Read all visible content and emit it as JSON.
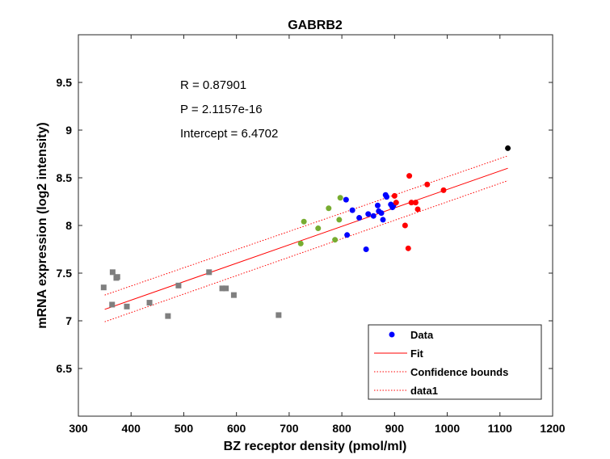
{
  "chart_data": {
    "type": "scatter",
    "title": "GABRB2",
    "xlabel": "BZ receptor density (pmol/ml)",
    "ylabel": "mRNA expression (log2 intensity)",
    "xlim": [
      300,
      1200
    ],
    "ylim": [
      6,
      10
    ],
    "xticks": [
      300,
      400,
      500,
      600,
      700,
      800,
      900,
      1000,
      1100,
      1200
    ],
    "yticks": [
      6.5,
      7,
      7.5,
      8,
      8.5,
      9,
      9.5
    ],
    "ytick_labels": [
      "6.5",
      "7",
      "7.5",
      "8",
      "8.5",
      "9",
      "9.5"
    ],
    "grid": false,
    "annotations": [
      "R = 0.87901",
      "P = 2.1157e-16",
      "Intercept = 6.4702"
    ],
    "legend": {
      "position": "bottom-right",
      "entries": [
        "Data",
        "Fit",
        "Confidence bounds",
        "data1"
      ]
    },
    "fit": {
      "x": [
        350,
        1115
      ],
      "y": [
        7.12,
        8.6
      ],
      "color": "#ff0000"
    },
    "confidence_upper": {
      "x": [
        350,
        1115
      ],
      "y": [
        7.27,
        8.73
      ],
      "color": "#ff0000"
    },
    "confidence_lower": {
      "x": [
        350,
        1115
      ],
      "y": [
        6.99,
        8.47
      ],
      "color": "#ff0000"
    },
    "groups": [
      {
        "color": "#7f7f7f",
        "marker": "square",
        "points": [
          [
            348,
            7.35
          ],
          [
            364,
            7.17
          ],
          [
            365,
            7.51
          ],
          [
            372,
            7.45
          ],
          [
            374,
            7.46
          ],
          [
            392,
            7.15
          ],
          [
            435,
            7.19
          ],
          [
            470,
            7.05
          ],
          [
            490,
            7.37
          ],
          [
            548,
            7.51
          ],
          [
            573,
            7.34
          ],
          [
            580,
            7.34
          ],
          [
            595,
            7.27
          ],
          [
            680,
            7.06
          ]
        ]
      },
      {
        "color": "#77ac30",
        "marker": "circle",
        "points": [
          [
            722,
            7.81
          ],
          [
            728,
            8.04
          ],
          [
            755,
            7.97
          ],
          [
            775,
            8.18
          ],
          [
            787,
            7.85
          ],
          [
            795,
            8.06
          ],
          [
            797,
            8.29
          ]
        ]
      },
      {
        "color": "#0000ff",
        "marker": "circle",
        "points": [
          [
            808,
            8.27
          ],
          [
            810,
            7.9
          ],
          [
            820,
            8.16
          ],
          [
            833,
            8.08
          ],
          [
            846,
            7.75
          ],
          [
            850,
            8.12
          ],
          [
            860,
            8.1
          ],
          [
            868,
            8.21
          ],
          [
            870,
            8.15
          ],
          [
            875,
            8.13
          ],
          [
            878,
            8.06
          ],
          [
            883,
            8.32
          ],
          [
            885,
            8.3
          ],
          [
            893,
            8.22
          ],
          [
            896,
            8.19
          ],
          [
            898,
            8.21
          ]
        ]
      },
      {
        "color": "#ff0000",
        "marker": "circle",
        "points": [
          [
            900,
            8.31
          ],
          [
            903,
            8.24
          ],
          [
            920,
            8.0
          ],
          [
            926,
            7.76
          ],
          [
            928,
            8.52
          ],
          [
            932,
            8.24
          ],
          [
            940,
            8.24
          ],
          [
            944,
            8.17
          ],
          [
            962,
            8.43
          ],
          [
            993,
            8.37
          ]
        ]
      },
      {
        "color": "#000000",
        "marker": "circle",
        "points": [
          [
            1115,
            8.81
          ]
        ]
      }
    ]
  }
}
